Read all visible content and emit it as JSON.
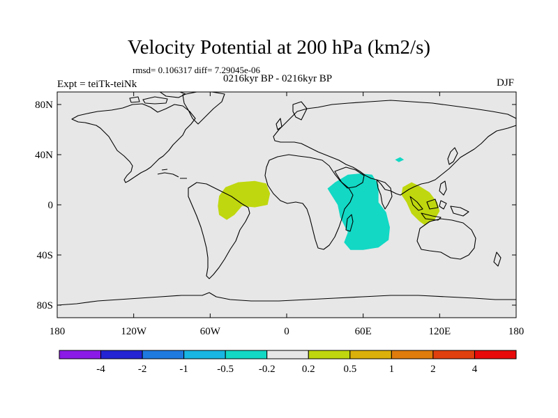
{
  "title": "Velocity Potential at 200 hPa (km2/s)",
  "stats": "rmsd= 0.106317 diff= 7.29045e-06",
  "subtitle": "0216kyr BP - 0216kyr BP",
  "expt": "Expt = teiTk-teiNk",
  "season": "DJF",
  "chart_data": {
    "type": "map-contour",
    "variable": "Velocity Potential at 200 hPa",
    "units": "km2/s",
    "x_ticks": [
      "180",
      "120W",
      "60W",
      "0",
      "60E",
      "120E",
      "180"
    ],
    "y_ticks": [
      "80N",
      "40N",
      "0",
      "40S",
      "80S"
    ],
    "lon_range": [
      -180,
      180
    ],
    "lat_range": [
      -90,
      90
    ],
    "colorbar": {
      "labels": [
        "-4",
        "-2",
        "-1",
        "-0.5",
        "-0.2",
        "0.2",
        "0.5",
        "1",
        "2",
        "4"
      ],
      "colors": [
        "#8b1ae6",
        "#2424d4",
        "#1f7ae0",
        "#18b6e2",
        "#12d8c4",
        "#e7e7e7",
        "#bfd70e",
        "#dcb00a",
        "#e07c0c",
        "#e0400e",
        "#e80a0a"
      ]
    },
    "background_color": "#e7e7e7",
    "regions": [
      {
        "name": "south-america-atlantic",
        "level": "0.2 to 0.5",
        "color": "#bfd70e",
        "polygon": [
          [
            -48,
            14
          ],
          [
            -38,
            18
          ],
          [
            -25,
            19
          ],
          [
            -16,
            17
          ],
          [
            -13,
            9
          ],
          [
            -15,
            0
          ],
          [
            -25,
            -2
          ],
          [
            -35,
            -1
          ],
          [
            -41,
            -8
          ],
          [
            -47,
            -12
          ],
          [
            -53,
            -8
          ],
          [
            -54,
            -1
          ],
          [
            -53,
            7
          ]
        ]
      },
      {
        "name": "indian-ocean-africa",
        "level": "-0.5 to -0.2",
        "color": "#12d8c4",
        "polygon": [
          [
            32,
            13
          ],
          [
            38,
            18
          ],
          [
            48,
            24
          ],
          [
            58,
            25
          ],
          [
            67,
            24
          ],
          [
            72,
            16
          ],
          [
            72,
            2
          ],
          [
            78,
            -6
          ],
          [
            81,
            -18
          ],
          [
            80,
            -28
          ],
          [
            72,
            -34
          ],
          [
            60,
            -36
          ],
          [
            50,
            -36
          ],
          [
            45,
            -30
          ],
          [
            48,
            -22
          ],
          [
            42,
            -10
          ],
          [
            40,
            0
          ],
          [
            35,
            8
          ]
        ]
      },
      {
        "name": "maritime-continent",
        "level": "0.2 to 0.5",
        "color": "#bfd70e",
        "polygon": [
          [
            91,
            14
          ],
          [
            98,
            18
          ],
          [
            104,
            15
          ],
          [
            112,
            10
          ],
          [
            118,
            2
          ],
          [
            120,
            -5
          ],
          [
            116,
            -12
          ],
          [
            108,
            -16
          ],
          [
            104,
            -13
          ],
          [
            98,
            -7
          ],
          [
            94,
            2
          ],
          [
            90,
            8
          ]
        ]
      },
      {
        "name": "pacific-blob",
        "level": "-0.5 to -0.2",
        "color": "#12d8c4",
        "polygon": [
          [
            85,
            36
          ],
          [
            89,
            38
          ],
          [
            92,
            36
          ],
          [
            88,
            34
          ]
        ]
      }
    ]
  }
}
